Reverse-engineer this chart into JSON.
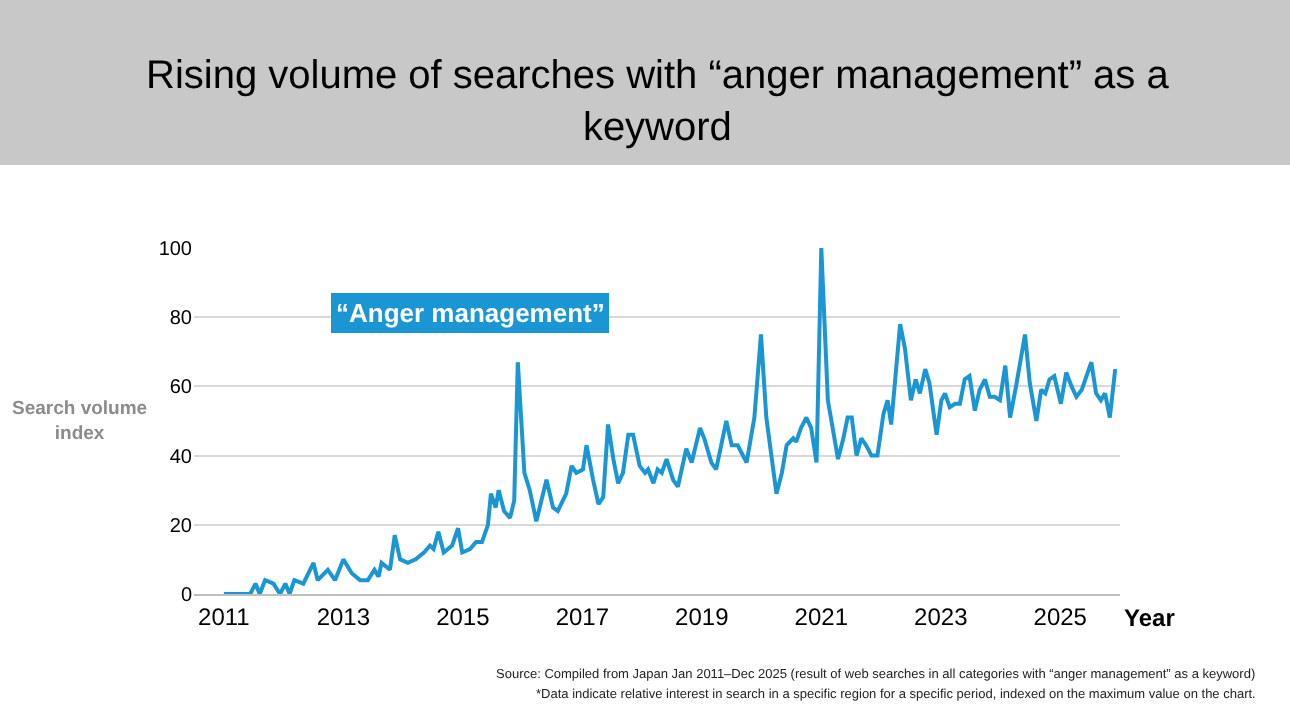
{
  "chart_data": {
    "type": "line",
    "title": "Rising volume of searches with “anger management” as a keyword",
    "ylabel": "Search volume index",
    "xlabel": "Year",
    "x": [
      2011.0,
      2011.44,
      2011.53,
      2011.6,
      2011.69,
      2011.83,
      2011.94,
      2012.03,
      2012.1,
      2012.18,
      2012.33,
      2012.5,
      2012.57,
      2012.74,
      2012.86,
      2013.0,
      2013.14,
      2013.28,
      2013.41,
      2013.52,
      2013.59,
      2013.64,
      2013.78,
      2013.86,
      2013.95,
      2014.08,
      2014.21,
      2014.35,
      2014.45,
      2014.51,
      2014.59,
      2014.68,
      2014.82,
      2014.92,
      2014.99,
      2015.12,
      2015.22,
      2015.32,
      2015.42,
      2015.47,
      2015.55,
      2015.6,
      2015.69,
      2015.79,
      2015.86,
      2015.92,
      2016.03,
      2016.12,
      2016.23,
      2016.4,
      2016.51,
      2016.59,
      2016.73,
      2016.82,
      2016.9,
      2017.01,
      2017.07,
      2017.18,
      2017.27,
      2017.35,
      2017.43,
      2017.52,
      2017.6,
      2017.68,
      2017.77,
      2017.85,
      2017.96,
      2018.05,
      2018.1,
      2018.19,
      2018.26,
      2018.33,
      2018.41,
      2018.52,
      2018.6,
      2018.74,
      2018.83,
      2018.97,
      2019.04,
      2019.16,
      2019.24,
      2019.41,
      2019.5,
      2019.6,
      2019.75,
      2019.88,
      2019.99,
      2020.08,
      2020.25,
      2020.34,
      2020.42,
      2020.53,
      2020.58,
      2020.66,
      2020.75,
      2020.83,
      2020.92,
      2021.0,
      2021.11,
      2021.17,
      2021.28,
      2021.37,
      2021.44,
      2021.51,
      2021.59,
      2021.67,
      2021.75,
      2021.84,
      2021.94,
      2022.04,
      2022.11,
      2022.17,
      2022.32,
      2022.4,
      2022.5,
      2022.58,
      2022.65,
      2022.74,
      2022.81,
      2022.93,
      2023.01,
      2023.07,
      2023.15,
      2023.24,
      2023.32,
      2023.4,
      2023.48,
      2023.57,
      2023.65,
      2023.74,
      2023.82,
      2023.9,
      2023.99,
      2024.08,
      2024.16,
      2024.26,
      2024.41,
      2024.49,
      2024.6,
      2024.68,
      2024.75,
      2024.82,
      2024.9,
      2025.01,
      2025.1,
      2025.19,
      2025.27,
      2025.36,
      2025.52,
      2025.6,
      2025.68,
      2025.75,
      2025.83,
      2025.92
    ],
    "series": [
      {
        "name": "“Anger management”",
        "color": "#1a96d4",
        "values": [
          0,
          0,
          3,
          0,
          4,
          3,
          0,
          3,
          0,
          4,
          3,
          9,
          4,
          7,
          4,
          10,
          6,
          4,
          4,
          7,
          5,
          9,
          7,
          17,
          10,
          9,
          10,
          12,
          14,
          13,
          18,
          12,
          14,
          19,
          12,
          13,
          15,
          15,
          20,
          29,
          25,
          30,
          24,
          22,
          27,
          67,
          35,
          30,
          21,
          33,
          25,
          24,
          29,
          37,
          35,
          36,
          43,
          33,
          26,
          28,
          49,
          39,
          32,
          35,
          46,
          46,
          37,
          35,
          36,
          32,
          36,
          35,
          39,
          33,
          31,
          42,
          38,
          48,
          45,
          38,
          36,
          50,
          43,
          43,
          38,
          51,
          75,
          51,
          29,
          35,
          43,
          45,
          44,
          48,
          51,
          48,
          38,
          100,
          56,
          50,
          39,
          45,
          51,
          51,
          40,
          45,
          43,
          40,
          40,
          52,
          56,
          49,
          78,
          71,
          56,
          62,
          58,
          65,
          61,
          46,
          56,
          58,
          54,
          55,
          55,
          62,
          63,
          53,
          59,
          62,
          57,
          57,
          56,
          66,
          51,
          60,
          75,
          61,
          50,
          59,
          58,
          62,
          63,
          55,
          64,
          60,
          57,
          59,
          67,
          58,
          56,
          58,
          51,
          65
        ]
      }
    ],
    "xlim": [
      2010.5,
      2026.0
    ],
    "xticks": [
      2011,
      2013,
      2015,
      2017,
      2019,
      2021,
      2023,
      2025
    ],
    "ylim": [
      0,
      100
    ],
    "yticks": [
      0,
      20,
      40,
      60,
      80,
      100
    ],
    "grid": "y",
    "marker": "none",
    "line_style": "solid",
    "annotations": [
      "Source: Compiled from Japan Jan 2011–Dec 2025 (result of web searches in all categories with “anger management” as a keyword)",
      "*Data indicate relative interest in search in a specific region for a specific period, indexed on the maximum value on the chart."
    ]
  }
}
